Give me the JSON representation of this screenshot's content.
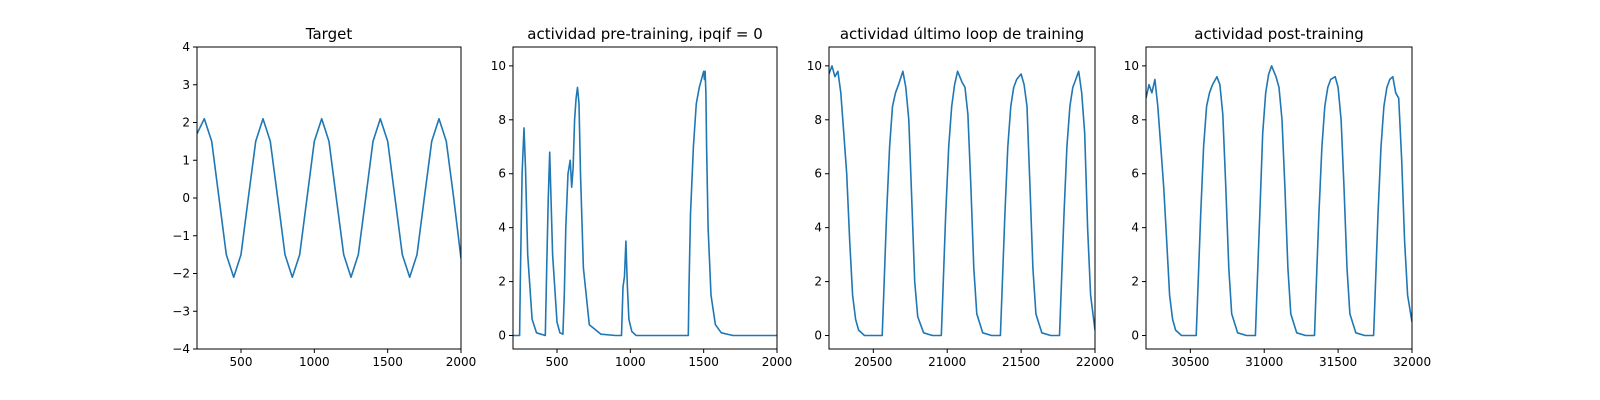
{
  "chart_data": [
    {
      "type": "line",
      "title": "Target",
      "xlim": [
        200,
        2000
      ],
      "ylim": [
        -4,
        4
      ],
      "xticks": [
        500,
        1000,
        1500,
        2000
      ],
      "yticks": [
        -4,
        -3,
        -2,
        -1,
        0,
        1,
        2,
        3,
        4
      ],
      "xtick_labels": [
        "500",
        "1000",
        "1500",
        "2000"
      ],
      "ytick_labels": [
        "−4",
        "−3",
        "−2",
        "−1",
        "0",
        "1",
        "2",
        "3",
        "4"
      ],
      "color": "#1f77b4",
      "x": [
        200,
        250,
        300,
        350,
        400,
        450,
        500,
        550,
        600,
        650,
        700,
        750,
        800,
        850,
        900,
        950,
        1000,
        1050,
        1100,
        1150,
        1200,
        1250,
        1300,
        1350,
        1400,
        1450,
        1500,
        1550,
        1600,
        1650,
        1700,
        1750,
        1800,
        1850,
        1900,
        1950,
        2000
      ],
      "y": [
        1.7,
        2.1,
        1.5,
        0.0,
        -1.5,
        -2.1,
        -1.5,
        0.0,
        1.5,
        2.1,
        1.5,
        0.0,
        -1.5,
        -2.1,
        -1.5,
        0.0,
        1.5,
        2.1,
        1.5,
        0.0,
        -1.5,
        -2.1,
        -1.5,
        0.0,
        1.5,
        2.1,
        1.5,
        0.0,
        -1.5,
        -2.1,
        -1.5,
        0.0,
        1.5,
        2.1,
        1.5,
        0.0,
        -1.6
      ]
    },
    {
      "type": "line",
      "title": "actividad pre-training, ipqif = 0",
      "xlim": [
        200,
        2000
      ],
      "ylim": [
        -0.5,
        10.7
      ],
      "xticks": [
        500,
        1000,
        1500,
        2000
      ],
      "yticks": [
        0,
        2,
        4,
        6,
        8,
        10
      ],
      "xtick_labels": [
        "500",
        "1000",
        "1500",
        "2000"
      ],
      "ytick_labels": [
        "0",
        "2",
        "4",
        "6",
        "8",
        "10"
      ],
      "color": "#1f77b4",
      "x": [
        200,
        245,
        250,
        262,
        275,
        285,
        300,
        330,
        360,
        420,
        430,
        440,
        450,
        470,
        500,
        520,
        540,
        550,
        560,
        575,
        590,
        600,
        610,
        620,
        630,
        640,
        650,
        660,
        680,
        720,
        800,
        900,
        940,
        950,
        960,
        970,
        980,
        990,
        1010,
        1040,
        1100,
        1200,
        1300,
        1395,
        1400,
        1410,
        1430,
        1450,
        1470,
        1490,
        1500,
        1505,
        1510,
        1515,
        1520,
        1530,
        1550,
        1580,
        1620,
        1700,
        1800,
        1900,
        2000
      ],
      "y": [
        0.0,
        0.0,
        2.0,
        6.0,
        7.7,
        6.2,
        3.0,
        0.6,
        0.1,
        0.0,
        2.5,
        5.0,
        6.8,
        3.0,
        0.5,
        0.1,
        0.05,
        1.5,
        4.0,
        6.0,
        6.5,
        5.5,
        6.2,
        8.0,
        8.8,
        9.2,
        8.6,
        6.0,
        2.5,
        0.4,
        0.05,
        0.0,
        0.0,
        1.8,
        2.2,
        3.5,
        1.8,
        0.6,
        0.15,
        0.0,
        0.0,
        0.0,
        0.0,
        0.0,
        1.8,
        4.5,
        7.0,
        8.6,
        9.2,
        9.6,
        9.8,
        9.5,
        9.8,
        9.0,
        7.0,
        4.0,
        1.5,
        0.4,
        0.1,
        0.0,
        0.0,
        0.0,
        0.0
      ]
    },
    {
      "type": "line",
      "title": "actividad último loop de training",
      "xlim": [
        20200,
        22000
      ],
      "ylim": [
        -0.5,
        10.7
      ],
      "xticks": [
        20500,
        21000,
        21500,
        22000
      ],
      "yticks": [
        0,
        2,
        4,
        6,
        8,
        10
      ],
      "xtick_labels": [
        "20500",
        "21000",
        "21500",
        "22000"
      ],
      "ytick_labels": [
        "0",
        "2",
        "4",
        "6",
        "8",
        "10"
      ],
      "color": "#1f77b4",
      "x": [
        20200,
        20220,
        20240,
        20260,
        20280,
        20300,
        20320,
        20340,
        20360,
        20380,
        20400,
        20440,
        20500,
        20560,
        20570,
        20590,
        20610,
        20630,
        20650,
        20670,
        20700,
        20720,
        20740,
        20760,
        20780,
        20800,
        20840,
        20900,
        20960,
        20970,
        20990,
        21010,
        21030,
        21050,
        21070,
        21100,
        21120,
        21140,
        21160,
        21180,
        21200,
        21240,
        21300,
        21360,
        21370,
        21390,
        21410,
        21430,
        21450,
        21470,
        21500,
        21520,
        21540,
        21560,
        21580,
        21600,
        21640,
        21700,
        21760,
        21770,
        21790,
        21810,
        21830,
        21850,
        21870,
        21890,
        21910,
        21930,
        21950,
        21970,
        22000
      ],
      "y": [
        9.7,
        10.0,
        9.6,
        9.8,
        9.0,
        7.5,
        6.0,
        3.5,
        1.5,
        0.6,
        0.2,
        0.0,
        0.0,
        0.0,
        1.5,
        4.5,
        7.0,
        8.5,
        9.0,
        9.3,
        9.8,
        9.2,
        8.0,
        5.0,
        2.0,
        0.7,
        0.1,
        0.0,
        0.0,
        1.5,
        4.5,
        7.0,
        8.5,
        9.3,
        9.8,
        9.4,
        9.2,
        8.2,
        5.5,
        2.5,
        0.8,
        0.1,
        0.0,
        0.0,
        1.5,
        4.5,
        7.0,
        8.5,
        9.2,
        9.5,
        9.7,
        9.3,
        8.5,
        5.5,
        2.5,
        0.8,
        0.1,
        0.0,
        0.0,
        1.5,
        4.5,
        7.0,
        8.5,
        9.2,
        9.5,
        9.8,
        9.0,
        7.5,
        4.0,
        1.5,
        0.2
      ]
    },
    {
      "type": "line",
      "title": "actividad post-training",
      "xlim": [
        30200,
        32000
      ],
      "ylim": [
        -0.5,
        10.7
      ],
      "xticks": [
        30500,
        31000,
        31500,
        32000
      ],
      "yticks": [
        0,
        2,
        4,
        6,
        8,
        10
      ],
      "xtick_labels": [
        "30500",
        "31000",
        "31500",
        "32000"
      ],
      "ytick_labels": [
        "0",
        "2",
        "4",
        "6",
        "8",
        "10"
      ],
      "color": "#1f77b4",
      "x": [
        30200,
        30220,
        30240,
        30260,
        30280,
        30300,
        30320,
        30340,
        30360,
        30380,
        30400,
        30440,
        30500,
        30540,
        30550,
        30570,
        30590,
        30610,
        30630,
        30650,
        30680,
        30700,
        30720,
        30740,
        30760,
        30780,
        30820,
        30880,
        30940,
        30950,
        30970,
        30990,
        31010,
        31030,
        31050,
        31080,
        31100,
        31120,
        31140,
        31160,
        31180,
        31220,
        31280,
        31340,
        31350,
        31370,
        31390,
        31410,
        31430,
        31450,
        31480,
        31500,
        31520,
        31540,
        31560,
        31580,
        31620,
        31680,
        31740,
        31750,
        31770,
        31790,
        31810,
        31830,
        31850,
        31870,
        31890,
        31910,
        31930,
        31950,
        31970,
        32000
      ],
      "y": [
        8.8,
        9.3,
        9.0,
        9.5,
        8.5,
        7.0,
        5.5,
        3.5,
        1.5,
        0.6,
        0.2,
        0.0,
        0.0,
        0.0,
        1.5,
        4.5,
        7.0,
        8.5,
        9.0,
        9.3,
        9.6,
        9.3,
        8.2,
        5.5,
        2.5,
        0.8,
        0.1,
        0.0,
        0.0,
        1.5,
        4.5,
        7.5,
        9.0,
        9.7,
        10.0,
        9.6,
        9.2,
        8.0,
        5.5,
        2.5,
        0.8,
        0.1,
        0.0,
        0.0,
        1.5,
        4.5,
        7.0,
        8.5,
        9.2,
        9.5,
        9.6,
        9.2,
        8.0,
        5.5,
        2.5,
        0.8,
        0.1,
        0.0,
        0.0,
        1.5,
        4.5,
        7.0,
        8.5,
        9.2,
        9.5,
        9.6,
        9.0,
        8.8,
        6.5,
        3.5,
        1.5,
        0.5
      ]
    }
  ]
}
